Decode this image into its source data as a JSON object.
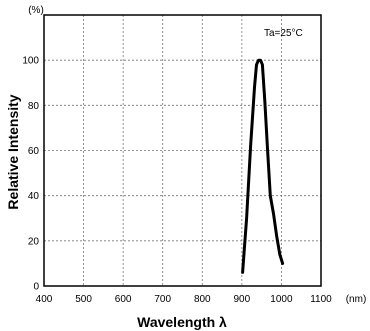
{
  "chart_data": {
    "type": "line",
    "title": "",
    "xlabel": "Wavelength λ",
    "ylabel": "Relative Intensity",
    "x_unit_label": "(nm)",
    "y_unit_label": "(%)",
    "xlim": [
      400,
      1100
    ],
    "ylim": [
      0,
      120
    ],
    "x_tick_labels": [
      "400",
      "500",
      "600",
      "700",
      "800",
      "900",
      "1000",
      "1100"
    ],
    "y_tick_labels": [
      "0",
      "20",
      "40",
      "60",
      "80",
      "100"
    ],
    "grid": true,
    "annotation": "Ta=25°C",
    "series": [
      {
        "x": [
          902,
          912,
          922,
          932,
          937,
          942,
          947,
          952,
          958,
          965,
          972,
          980,
          988,
          996,
          1003
        ],
        "y": [
          6,
          30,
          62,
          88,
          98,
          100,
          100,
          98,
          82,
          60,
          40,
          32,
          22,
          14,
          10
        ]
      }
    ]
  }
}
